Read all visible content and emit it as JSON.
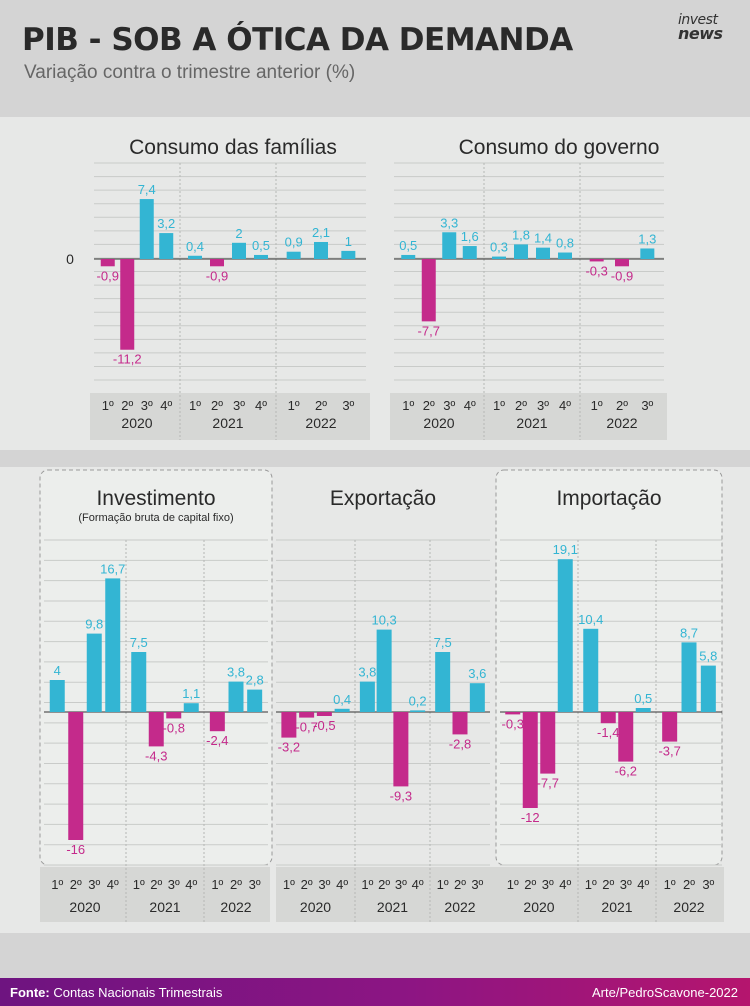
{
  "header": {
    "title": "PIB - SOB A ÓTICA DA DEMANDA",
    "subtitle": "Variação contra o trimestre anterior (%)",
    "logo_line1": "invest",
    "logo_line2": "news"
  },
  "footer": {
    "source_label": "Fonte:",
    "source_text": " Contas Nacionais Trimestrais",
    "credit": "Arte/PedroScavone-2022"
  },
  "colors": {
    "positive": "#33b5d3",
    "negative": "#c42a8b",
    "axis_band": "#d6d7d5"
  },
  "zero_label": "0",
  "chart_data": [
    {
      "type": "bar",
      "title": "Consumo das famílias",
      "categories": [
        "1º",
        "2º",
        "3º",
        "4º",
        "1º",
        "2º",
        "3º",
        "4º",
        "1º",
        "2º",
        "3º"
      ],
      "years": [
        {
          "label": "2020",
          "quarters": 4
        },
        {
          "label": "2021",
          "quarters": 4
        },
        {
          "label": "2022",
          "quarters": 3
        }
      ],
      "values": [
        -0.9,
        -11.2,
        7.4,
        3.2,
        0.4,
        -0.9,
        2,
        0.5,
        0.9,
        2.1,
        1
      ],
      "value_labels": [
        "-0,9",
        "-11,2",
        "7,4",
        "3,2",
        "0,4",
        "-0,9",
        "2",
        "0,5",
        "0,9",
        "2,1",
        "1"
      ],
      "ylim": [
        -15,
        10
      ]
    },
    {
      "type": "bar",
      "title": "Consumo do governo",
      "categories": [
        "1º",
        "2º",
        "3º",
        "4º",
        "1º",
        "2º",
        "3º",
        "4º",
        "1º",
        "2º",
        "3º"
      ],
      "years": [
        {
          "label": "2020",
          "quarters": 4
        },
        {
          "label": "2021",
          "quarters": 4
        },
        {
          "label": "2022",
          "quarters": 3
        }
      ],
      "values": [
        0.5,
        -7.7,
        3.3,
        1.6,
        0.3,
        1.8,
        1.4,
        0.8,
        -0.3,
        -0.9,
        1.3
      ],
      "value_labels": [
        "0,5",
        "-7,7",
        "3,3",
        "1,6",
        "0,3",
        "1,8",
        "1,4",
        "0,8",
        "-0,3",
        "-0,9",
        "1,3"
      ],
      "ylim": [
        -15,
        10
      ]
    },
    {
      "type": "bar",
      "title": "Investimento",
      "subtitle": "(Formação bruta de capital fixo)",
      "categories": [
        "1º",
        "2º",
        "3º",
        "4º",
        "1º",
        "2º",
        "3º",
        "4º",
        "1º",
        "2º",
        "3º"
      ],
      "years": [
        {
          "label": "2020",
          "quarters": 4
        },
        {
          "label": "2021",
          "quarters": 4
        },
        {
          "label": "2022",
          "quarters": 3
        }
      ],
      "values": [
        4,
        -16,
        9.8,
        16.7,
        7.5,
        -4.3,
        -0.8,
        1.1,
        -2.4,
        3.8,
        2.8
      ],
      "value_labels": [
        "4",
        "-16",
        "9,8",
        "16,7",
        "7,5",
        "-4,3",
        "-0,8",
        "1,1",
        "-2,4",
        "3,8",
        "2,8"
      ],
      "ylim": [
        -19,
        20
      ]
    },
    {
      "type": "bar",
      "title": "Exportação",
      "categories": [
        "1º",
        "2º",
        "3º",
        "4º",
        "1º",
        "2º",
        "3º",
        "4º",
        "1º",
        "2º",
        "3º"
      ],
      "years": [
        {
          "label": "2020",
          "quarters": 4
        },
        {
          "label": "2021",
          "quarters": 4
        },
        {
          "label": "2022",
          "quarters": 3
        }
      ],
      "values": [
        -3.2,
        -0.7,
        -0.5,
        0.4,
        3.8,
        10.3,
        -9.3,
        0.2,
        7.5,
        -2.8,
        3.6
      ],
      "value_labels": [
        "-3,2",
        "-0,7",
        "-0,5",
        "0,4",
        "3,8",
        "10,3",
        "-9,3",
        "0,2",
        "7,5",
        "-2,8",
        "3,6"
      ],
      "ylim": [
        -19,
        20
      ]
    },
    {
      "type": "bar",
      "title": "Importação",
      "categories": [
        "1º",
        "2º",
        "3º",
        "4º",
        "1º",
        "2º",
        "3º",
        "4º",
        "1º",
        "2º",
        "3º"
      ],
      "years": [
        {
          "label": "2020",
          "quarters": 4
        },
        {
          "label": "2021",
          "quarters": 4
        },
        {
          "label": "2022",
          "quarters": 3
        }
      ],
      "values": [
        -0.3,
        -12,
        -7.7,
        19.1,
        10.4,
        -1.4,
        -6.2,
        0.5,
        -3.7,
        8.7,
        5.8
      ],
      "value_labels": [
        "-0,3",
        "-12",
        "-7,7",
        "19,1",
        "10,4",
        "-1,4",
        "-6,2",
        "0,5",
        "-3,7",
        "8,7",
        "5,8"
      ],
      "ylim": [
        -19,
        20
      ]
    }
  ]
}
